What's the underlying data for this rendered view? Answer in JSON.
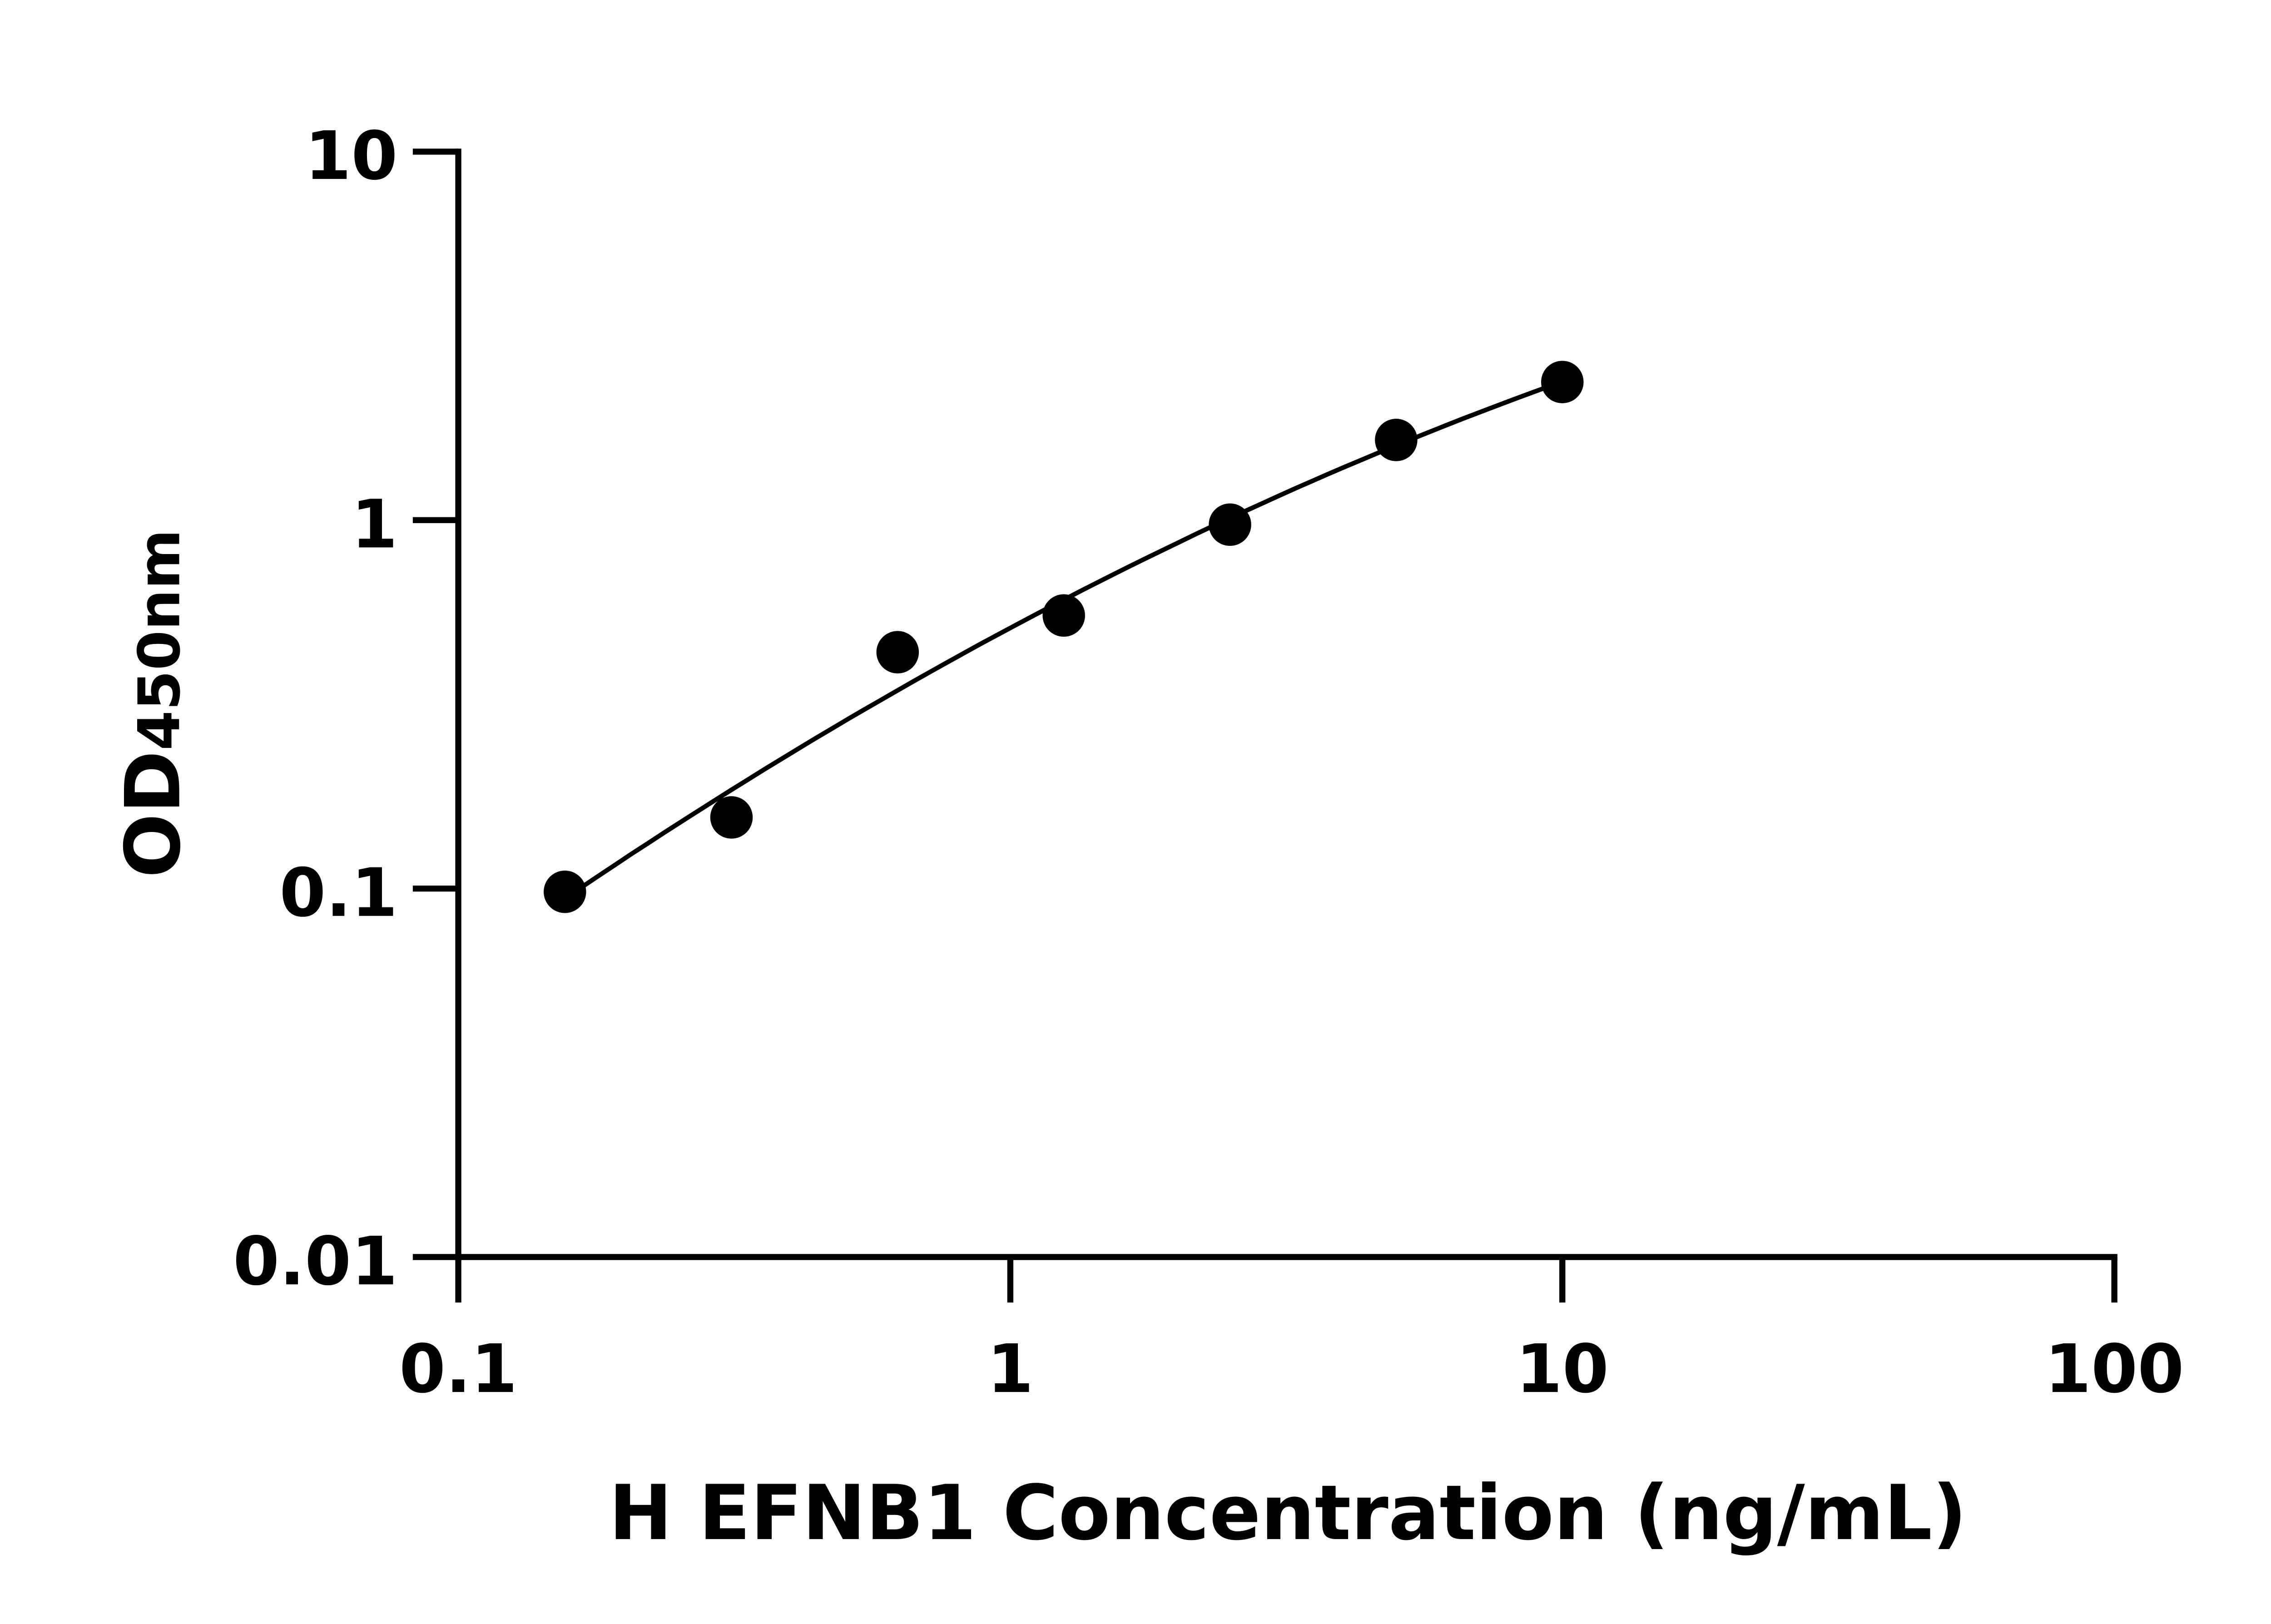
{
  "chart_data": {
    "type": "scatter",
    "xlabel": "H EFNB1 Concentration (ng/mL)",
    "ylabel_main": "OD",
    "ylabel_sub": "450nm",
    "xscale": "log",
    "yscale": "log",
    "xlim": [
      0.1,
      100
    ],
    "ylim": [
      0.01,
      10
    ],
    "xticks": [
      "0.1",
      "1",
      "10",
      "100"
    ],
    "yticks": [
      "0.01",
      "0.1",
      "1",
      "10"
    ],
    "grid": false,
    "fit_line": true,
    "marker_color": "#000000",
    "x": [
      0.156,
      0.3125,
      0.625,
      1.25,
      2.5,
      5,
      10
    ],
    "y": [
      0.098,
      0.156,
      0.438,
      0.551,
      0.972,
      1.65,
      2.37
    ]
  }
}
